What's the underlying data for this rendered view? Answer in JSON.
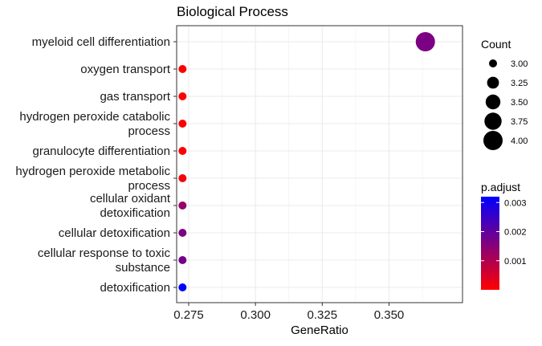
{
  "chart_data": {
    "type": "scatter",
    "title": "Biological Process",
    "xlabel": "GeneRatio",
    "ylabel": "",
    "xlim": [
      0.2705,
      0.3775
    ],
    "x_ticks": [
      0.275,
      0.3,
      0.325,
      0.35
    ],
    "x_tick_labels": [
      "0.275",
      "0.300",
      "0.325",
      "0.350"
    ],
    "grid": true,
    "categories": [
      [
        "myeloid cell differentiation"
      ],
      [
        "oxygen transport"
      ],
      [
        "gas transport"
      ],
      [
        "hydrogen peroxide catabolic",
        "process"
      ],
      [
        "granulocyte differentiation"
      ],
      [
        "hydrogen peroxide metabolic",
        "process"
      ],
      [
        "cellular oxidant",
        "detoxification"
      ],
      [
        "cellular detoxification"
      ],
      [
        "cellular response to toxic",
        "substance"
      ],
      [
        "detoxification"
      ]
    ],
    "points": [
      {
        "x": 0.3636,
        "count": 4,
        "p_adjust": 0.00165
      },
      {
        "x": 0.2727,
        "count": 3,
        "p_adjust": 2e-05
      },
      {
        "x": 0.2727,
        "count": 3,
        "p_adjust": 2e-05
      },
      {
        "x": 0.2727,
        "count": 3,
        "p_adjust": 8e-05
      },
      {
        "x": 0.2727,
        "count": 3,
        "p_adjust": 8e-05
      },
      {
        "x": 0.2727,
        "count": 3,
        "p_adjust": 0.0001
      },
      {
        "x": 0.2727,
        "count": 3,
        "p_adjust": 0.0013
      },
      {
        "x": 0.2727,
        "count": 3,
        "p_adjust": 0.00165
      },
      {
        "x": 0.2727,
        "count": 3,
        "p_adjust": 0.00175
      },
      {
        "x": 0.2727,
        "count": 3,
        "p_adjust": 0.0032
      }
    ],
    "legend_count": {
      "title": "Count",
      "values": [
        3.0,
        3.25,
        3.5,
        3.75,
        4.0
      ],
      "labels": [
        "3.00",
        "3.25",
        "3.50",
        "3.75",
        "4.00"
      ]
    },
    "legend_color": {
      "title": "p.adjust",
      "range": [
        0.0,
        0.0032
      ],
      "ticks": [
        0.001,
        0.002,
        0.003
      ],
      "tick_labels": [
        "0.001",
        "0.002",
        "0.003"
      ],
      "low_color": "#ff0000",
      "high_color": "#0000ff"
    },
    "legend_position": "right"
  }
}
